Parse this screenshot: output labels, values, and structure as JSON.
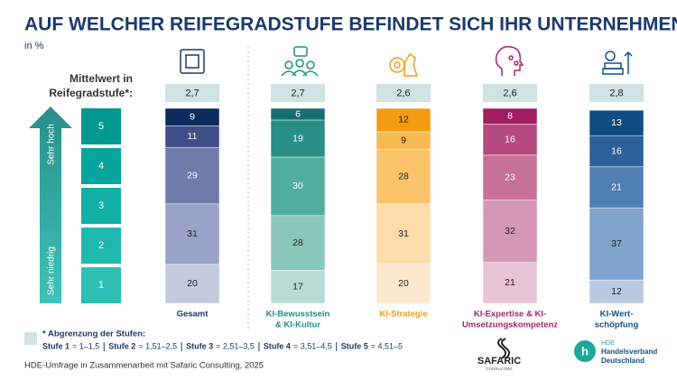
{
  "chart_data": {
    "type": "bar",
    "stacked": true,
    "title": "AUF WELCHER REIFEGRADSTUFE BEFINDET SICH IHR UNTERNEHMEN?",
    "subtitle": "in %",
    "mean_title": [
      "Mittelwert in",
      "Reifegradstufe*:"
    ],
    "arrow_labels": {
      "high": "Sehr hoch",
      "low": "Sehr niedrig"
    },
    "categories": [
      [
        "Gesamt"
      ],
      [
        "KI-Bewusstsein",
        "& KI-Kultur"
      ],
      [
        "KI-Strategie"
      ],
      [
        "KI-Expertise & KI-",
        "Umsetzungskompetenz"
      ],
      [
        "KI-Wert-",
        "schöpfung"
      ]
    ],
    "category_colors": [
      "#1b3a6b",
      "#1f8f86",
      "#f39c12",
      "#a3246b",
      "#135089"
    ],
    "means": {
      "values": [
        2.7,
        2.7,
        2.6,
        2.6,
        2.8
      ],
      "value_labels": [
        "2,7",
        "2,7",
        "2,6",
        "2,6",
        "2,8"
      ]
    },
    "series": [
      {
        "name": "1",
        "values": [
          20,
          17,
          20,
          21,
          12
        ]
      },
      {
        "name": "2",
        "values": [
          31,
          28,
          31,
          32,
          37
        ]
      },
      {
        "name": "3",
        "values": [
          29,
          30,
          28,
          23,
          21
        ]
      },
      {
        "name": "4",
        "values": [
          11,
          19,
          9,
          16,
          16
        ]
      },
      {
        "name": "5",
        "values": [
          9,
          6,
          12,
          8,
          13
        ]
      }
    ],
    "palettes": [
      [
        "#c5c9de",
        "#9aa2c7",
        "#6f7bab",
        "#3f4f87",
        "#0d2a5e"
      ],
      [
        "#b8dcd5",
        "#8ac6ba",
        "#4fae9e",
        "#2a8f86",
        "#166e73"
      ],
      [
        "#fde9cf",
        "#fcdcaa",
        "#fbc46a",
        "#f8b852",
        "#f39c12"
      ],
      [
        "#e8c3d4",
        "#d597b5",
        "#c6709a",
        "#b54a81",
        "#a01d66"
      ],
      [
        "#b8c9e1",
        "#7fa3cc",
        "#4f7eb2",
        "#2d6199",
        "#0f4c81"
      ]
    ],
    "ylim": [
      0,
      100
    ],
    "footnote": {
      "title": "* Abgrenzung der Stufen:",
      "items": [
        {
          "label": "Stufe 1",
          "range": "= 1–1,5"
        },
        {
          "label": "Stufe 2",
          "range": "= 1,51–2,5"
        },
        {
          "label": "Stufe 3",
          "range": "= 2,51–3,5"
        },
        {
          "label": "Stufe 4",
          "range": "= 3,51–4,5"
        },
        {
          "label": "Stufe 5",
          "range": "= 4,51–5"
        }
      ]
    },
    "source": "HDE-Umfrage in Zusammenarbeit mit Safaric Consulting, 2025",
    "logos": {
      "safaric": "SAFARIC",
      "safaric_sub": "CONSULTING",
      "hde": "HDE",
      "hde_lines": [
        "Handelsverband",
        "Deutschland"
      ]
    }
  }
}
